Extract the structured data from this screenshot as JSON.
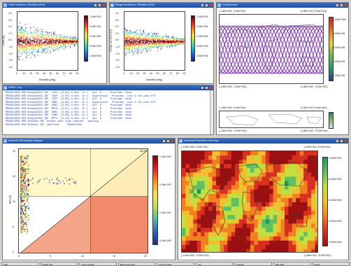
{
  "windows": {
    "w1": {
      "title": "Code residual vs. Elevation (G01)"
    },
    "w2": {
      "title": "Range accuracy vs. Elevation (G01)"
    },
    "w3": {
      "title": "Ground Track"
    },
    "w4": {
      "title": "GNSS - Log"
    },
    "w5": {
      "title": "Stanford-ESA Integrity Diagram"
    },
    "w6": {
      "title": "Horizontal Protection Level Map"
    }
  },
  "plot1": {
    "ylabel": "Code [m]",
    "xlabel": "Elevation [deg]",
    "yticks": [
      "4.0",
      "3.0",
      "2.0",
      "1.0",
      "0.0",
      "-1.0",
      "-2.0",
      "-3.0",
      "-4.0"
    ],
    "xticks": [
      "0",
      "10",
      "20",
      "30",
      "40",
      "50",
      "60",
      "70",
      "80",
      "90"
    ],
    "cbar": [
      "1.00e+002",
      "3.00e+001",
      "1.00e+001",
      "3.00e+000",
      "1.00e+000"
    ]
  },
  "plot2": {
    "ylabel": "Range accuracy [m]",
    "xlabel": "Elevation [deg]",
    "yticks": [
      "4.0",
      "3.0",
      "2.0",
      "1.0",
      "0.0",
      "-1.0",
      "-2.0",
      "-3.0",
      "-4.0"
    ],
    "xticks": [
      "0",
      "10",
      "20",
      "30",
      "40",
      "50",
      "60",
      "70",
      "80",
      "90"
    ],
    "cbar": [
      "1.00e+002",
      "3.00e+001",
      "1.00e+001",
      "3.00e+000",
      "1.00e+000"
    ]
  },
  "plot3": {
    "corner_tl": "(-1.80e+002, 9.00e+001)",
    "corner_tr": "(1.80e+002, 9.00e+001)",
    "corner_bl": "(-1.80e+002, -9.00e+001)",
    "corner_br": "(1.80e+002, -9.00e+001)",
    "cbar": [
      "1.000e+000",
      "8.000e-001",
      "6.000e-001",
      "4.000e-001",
      "2.000e-001"
    ]
  },
  "plot3b": {
    "corner_tl": "(-1.80e+002, 9.00e+001)",
    "corner_tr": "(1.80e+002, 9.00e+001)",
    "corner_bl": "(-1.80e+002, -9.00e+001)",
    "corner_br": "(1.80e+002, -9.00e+001)"
  },
  "log": {
    "lines": [
      "TRK0012000 000 Rodaja2015 INF  CLK3  (G-01) # Obs  In 1   Out  6      Problems  None",
      "TRK0012000 000 Rodaja2015 INF  TRIP  (G-03) # Obs  In 1   Suppressed   Problems  Lock # the past-PTI",
      "TRK0012000 000 Rodaja2015 INF  TRIP  (G-04) # Obs  In 1   Out  6      Problems  None",
      "TRK0012000 000 Rodaja2015 INF  ORB1  (G-05) # Obs  In 1   Suppressed   Problems  Lock # the past-PTI",
      "TRK0012000 000 Rodaja2015 INF  ORB1  (G-06) # Obs  In 1   Out  6      Problems  None",
      "TRK0012000 000 Rodaja2015 INF  MPTH  (G-07) # Obs  In 1   Out  6      Problems  None",
      "TRK0012000 000 Rodaja2015 INF  ORB1  (G-08) # Obs  In 1   Out  6      Problems  None",
      "TRK0012000 000 Rodaja2015 INF  IONO  (G-09) # Obs  In 1   Out  6      Problems  None",
      "TRK0012000 000 Rodaja2015 INF  MPTH  (G-10) # Obs  In 1   Out  6      Problems  None",
      "TRK0012000 000 GPSUsed INF  Recent wait time reached - waiting",
      "TRK0012000 000 GPSUsed INF  WaitTime     TRK0012000"
    ]
  },
  "plot5": {
    "ylabel": "HPL [m]",
    "xticks": [
      "0",
      "5",
      "10",
      "15",
      "20"
    ],
    "yticks": [
      "20",
      "15",
      "10",
      "5",
      "0"
    ],
    "corner": "99.2%",
    "cbar": [
      "1.00e+003",
      "1.00e+002",
      "1.00e+001",
      "1.00e+000"
    ]
  },
  "plot6": {
    "corner_tl": "(-1.80e+002, 9.00e+001)",
    "corner_tr": "(1.80e+002, 9.00e+001)",
    "corner_bl": "(-1.80e+002, -9.00e+001)",
    "corner_br": "(1.80e+002, -9.00e+001)",
    "cbar": [
      "1.000e+001",
      "8.000e+000",
      "6.000e+000",
      "4.000e+000",
      "2.000e+000"
    ]
  },
  "taskbar": {
    "items": [
      "Start",
      "GNSS Tool",
      "Code residual",
      "Range accuracy",
      "Ground Track",
      "Log",
      "Integrity",
      "HPL Map",
      "12:00"
    ]
  }
}
